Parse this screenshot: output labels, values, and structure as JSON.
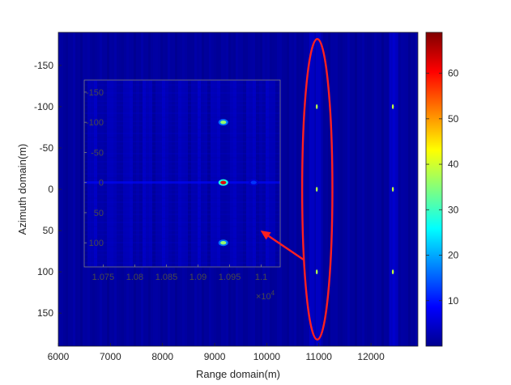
{
  "chart_data": {
    "type": "heatmap",
    "xlabel": "Range domain(m)",
    "ylabel": "Azimuth domain(m)",
    "xlim": [
      6000,
      12900
    ],
    "ylim": [
      -190,
      190
    ],
    "y_reversed": true,
    "x_ticks": [
      "6000",
      "7000",
      "8000",
      "9000",
      "10000",
      "11000",
      "12000"
    ],
    "x_tick_values": [
      6000,
      7000,
      8000,
      9000,
      10000,
      11000,
      12000
    ],
    "y_ticks": [
      "-150",
      "-100",
      "-50",
      "0",
      "50",
      "100",
      "150"
    ],
    "y_tick_values": [
      -150,
      -100,
      -50,
      0,
      50,
      100,
      150
    ],
    "colorbar": {
      "clim": [
        0,
        69
      ],
      "ticks": [
        "10",
        "20",
        "30",
        "40",
        "50",
        "60"
      ],
      "tick_values": [
        10,
        20,
        30,
        40,
        50,
        60
      ],
      "colormap": "jet"
    },
    "background_level": 2,
    "stripes_x": [
      10860,
      10980,
      12400,
      12460
    ],
    "targets": [
      {
        "x": 10960,
        "y": -100,
        "value": 8
      },
      {
        "x": 10960,
        "y": 0,
        "value": 8
      },
      {
        "x": 10960,
        "y": 100,
        "value": 8
      },
      {
        "x": 12420,
        "y": -100,
        "value": 9
      },
      {
        "x": 12420,
        "y": 0,
        "value": 9
      },
      {
        "x": 12420,
        "y": 100,
        "value": 9
      }
    ],
    "inset": {
      "xlim": [
        10720,
        11030
      ],
      "ylim": [
        -170,
        140
      ],
      "x_ticks": [
        "1.075",
        "1.08",
        "1.085",
        "1.09",
        "1.095",
        "1.1"
      ],
      "x_tick_values": [
        10750,
        10800,
        10850,
        10900,
        10950,
        11000
      ],
      "x_multiplier_base": "×10",
      "x_multiplier_exp": "4",
      "y_ticks": [
        "-150",
        "-100",
        "-50",
        "0",
        "50",
        "100"
      ],
      "y_tick_values": [
        -150,
        -100,
        -50,
        0,
        50,
        100
      ],
      "targets": [
        {
          "x": 10940,
          "y": -100,
          "value": 36
        },
        {
          "x": 10940,
          "y": 0,
          "value": 62
        },
        {
          "x": 10940,
          "y": 100,
          "value": 36
        },
        {
          "x": 10988,
          "y": 0,
          "value": 12
        }
      ]
    },
    "annotation": {
      "type": "ellipse-with-arrow",
      "color": "#ff2020",
      "ellipse_center": [
        10970,
        0
      ],
      "ellipse_half_width_x": 290,
      "ellipse_half_height_y": 182,
      "arrow_from": [
        10700,
        85
      ],
      "arrow_to": [
        9880,
        50
      ]
    }
  }
}
